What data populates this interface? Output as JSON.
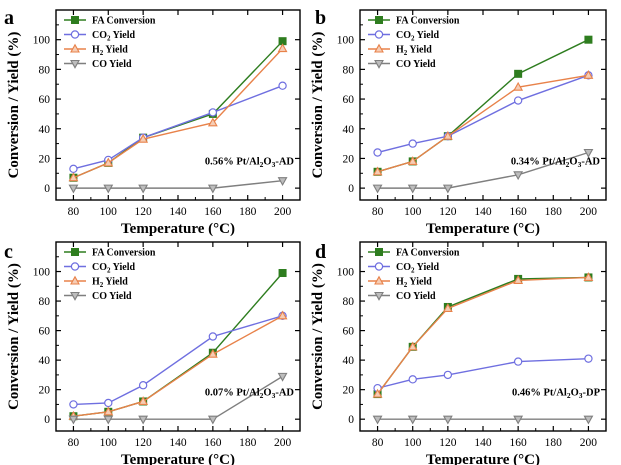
{
  "chart_data": [
    {
      "panel": "a",
      "type": "line",
      "xlabel": "Temperature (°C)",
      "ylabel": "Conversion / Yield (%)",
      "xlim": [
        70,
        210
      ],
      "ylim": [
        -8,
        120
      ],
      "xticks": [
        80,
        100,
        120,
        140,
        160,
        180,
        200
      ],
      "yticks": [
        0,
        20,
        40,
        60,
        80,
        100
      ],
      "sample_label": {
        "main": "0.56% Pt/Al",
        "sub1": "2",
        "mid": "O",
        "sub2": "3",
        "end": "-AD"
      },
      "legend_position": "top-left",
      "x": [
        80,
        100,
        120,
        160,
        200
      ],
      "series": [
        {
          "name": "FA Conversion",
          "main": "FA Conversion",
          "sub": "",
          "end": "",
          "color": "#2e7d1f",
          "marker": "square",
          "values": [
            7,
            17,
            34,
            50,
            99
          ]
        },
        {
          "name": "CO2 Yield",
          "main": "CO",
          "sub": "2",
          "end": " Yield",
          "color": "#6f6fe0",
          "marker": "circle",
          "values": [
            13,
            19,
            34,
            51,
            69
          ]
        },
        {
          "name": "H2 Yield",
          "main": "H",
          "sub": "2",
          "end": " Yield",
          "color": "#e8824a",
          "marker": "triangle-up",
          "values": [
            7,
            17,
            33,
            44,
            94
          ]
        },
        {
          "name": "CO Yield",
          "main": "CO Yield",
          "sub": "",
          "end": "",
          "color": "#7f7f7f",
          "marker": "triangle-down",
          "values": [
            0,
            0,
            0,
            0,
            5
          ]
        }
      ]
    },
    {
      "panel": "b",
      "type": "line",
      "xlabel": "Temperature (°C)",
      "ylabel": "Conversion / Yield (%)",
      "xlim": [
        70,
        210
      ],
      "ylim": [
        -8,
        120
      ],
      "xticks": [
        80,
        100,
        120,
        140,
        160,
        180,
        200
      ],
      "yticks": [
        0,
        20,
        40,
        60,
        80,
        100
      ],
      "sample_label": {
        "main": "0.34% Pt/Al",
        "sub1": "2",
        "mid": "O",
        "sub2": "3",
        "end": "-AD"
      },
      "legend_position": "top-left",
      "x": [
        80,
        100,
        120,
        160,
        200
      ],
      "series": [
        {
          "name": "FA Conversion",
          "main": "FA Conversion",
          "sub": "",
          "end": "",
          "color": "#2e7d1f",
          "marker": "square",
          "values": [
            11,
            18,
            35,
            77,
            100
          ]
        },
        {
          "name": "CO2 Yield",
          "main": "CO",
          "sub": "2",
          "end": " Yield",
          "color": "#6f6fe0",
          "marker": "circle",
          "values": [
            24,
            30,
            35,
            59,
            76
          ]
        },
        {
          "name": "H2 Yield",
          "main": "H",
          "sub": "2",
          "end": " Yield",
          "color": "#e8824a",
          "marker": "triangle-up",
          "values": [
            11,
            18,
            35,
            68,
            76
          ]
        },
        {
          "name": "CO Yield",
          "main": "CO Yield",
          "sub": "",
          "end": "",
          "color": "#7f7f7f",
          "marker": "triangle-down",
          "values": [
            0,
            0,
            0,
            9,
            24
          ]
        }
      ]
    },
    {
      "panel": "c",
      "type": "line",
      "xlabel": "Temperature (°C)",
      "ylabel": "Conversion / Yield (%)",
      "xlim": [
        70,
        210
      ],
      "ylim": [
        -8,
        120
      ],
      "xticks": [
        80,
        100,
        120,
        140,
        160,
        180,
        200
      ],
      "yticks": [
        0,
        20,
        40,
        60,
        80,
        100
      ],
      "sample_label": {
        "main": "0.07% Pt/Al",
        "sub1": "2",
        "mid": "O",
        "sub2": "3",
        "end": "-AD"
      },
      "legend_position": "top-left",
      "x": [
        80,
        100,
        120,
        160,
        200
      ],
      "series": [
        {
          "name": "FA Conversion",
          "main": "FA Conversion",
          "sub": "",
          "end": "",
          "color": "#2e7d1f",
          "marker": "square",
          "values": [
            2,
            5,
            12,
            45,
            99
          ]
        },
        {
          "name": "CO2 Yield",
          "main": "CO",
          "sub": "2",
          "end": " Yield",
          "color": "#6f6fe0",
          "marker": "circle",
          "values": [
            10,
            11,
            23,
            56,
            70
          ]
        },
        {
          "name": "H2 Yield",
          "main": "H",
          "sub": "2",
          "end": " Yield",
          "color": "#e8824a",
          "marker": "triangle-up",
          "values": [
            2,
            5,
            12,
            44,
            70
          ]
        },
        {
          "name": "CO Yield",
          "main": "CO Yield",
          "sub": "",
          "end": "",
          "color": "#7f7f7f",
          "marker": "triangle-down",
          "values": [
            0,
            0,
            0,
            0,
            29
          ]
        }
      ]
    },
    {
      "panel": "d",
      "type": "line",
      "xlabel": "Temperature (°C)",
      "ylabel": "Conversion / Yield (%)",
      "xlim": [
        70,
        210
      ],
      "ylim": [
        -8,
        120
      ],
      "xticks": [
        80,
        100,
        120,
        140,
        160,
        180,
        200
      ],
      "yticks": [
        0,
        20,
        40,
        60,
        80,
        100
      ],
      "sample_label": {
        "main": "0.46% Pt/Al",
        "sub1": "2",
        "mid": "O",
        "sub2": "3",
        "end": "-DP"
      },
      "legend_position": "top-left",
      "x": [
        80,
        100,
        120,
        160,
        200
      ],
      "series": [
        {
          "name": "FA Conversion",
          "main": "FA Conversion",
          "sub": "",
          "end": "",
          "color": "#2e7d1f",
          "marker": "square",
          "values": [
            17,
            49,
            76,
            95,
            96
          ]
        },
        {
          "name": "CO2 Yield",
          "main": "CO",
          "sub": "2",
          "end": " Yield",
          "color": "#6f6fe0",
          "marker": "circle",
          "values": [
            21,
            27,
            30,
            39,
            41
          ]
        },
        {
          "name": "H2 Yield",
          "main": "H",
          "sub": "2",
          "end": " Yield",
          "color": "#e8824a",
          "marker": "triangle-up",
          "values": [
            17,
            49,
            75,
            94,
            96
          ]
        },
        {
          "name": "CO Yield",
          "main": "CO Yield",
          "sub": "",
          "end": "",
          "color": "#7f7f7f",
          "marker": "triangle-down",
          "values": [
            0,
            0,
            0,
            0,
            0
          ]
        }
      ]
    }
  ]
}
